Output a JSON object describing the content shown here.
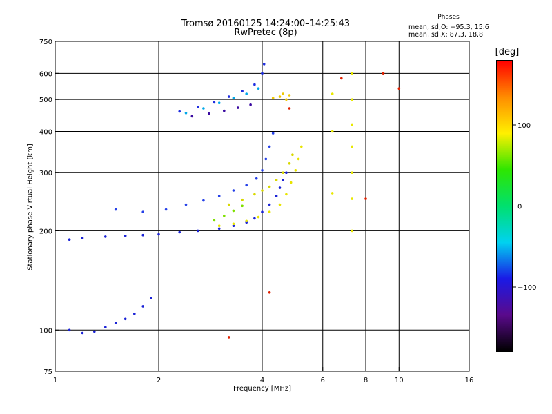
{
  "header": {
    "title_line1": "Tromsø 20160125 14:24:00–14:25:43",
    "title_line2": "RwPretec (8p)",
    "stats_title": "Phases",
    "stats_lines": [
      "mean, sd,O: −95.3, 15.6",
      "mean, sd,X:  87.3, 18.8"
    ]
  },
  "chart_data": {
    "type": "scatter",
    "xlabel": "Frequency [MHz]",
    "ylabel": "Stationary phase Virtual Height [km]",
    "x_scale": "log",
    "y_scale": "log",
    "xlim": [
      1,
      16
    ],
    "ylim": [
      75,
      750
    ],
    "x_ticks": [
      1,
      2,
      4,
      6,
      8,
      10,
      16
    ],
    "x_tick_labels": [
      "1",
      "2",
      "4",
      "6",
      "8",
      "10",
      "16"
    ],
    "y_ticks": [
      75,
      100,
      200,
      300,
      400,
      500,
      600,
      750
    ],
    "y_tick_labels": [
      "75",
      "100",
      "200",
      "300",
      "400",
      "500",
      "600",
      "750"
    ],
    "grid_x": [
      2,
      4,
      6,
      8,
      10
    ],
    "grid_y": [
      100,
      200,
      300,
      400,
      500,
      600
    ],
    "colorbar": {
      "label": "[deg]",
      "range": [
        -180,
        180
      ],
      "ticks": [
        100,
        0,
        -100
      ],
      "tick_labels": [
        "100",
        "0",
        "−100"
      ],
      "colors": [
        "#000000",
        "#5a0a8c",
        "#1a1ae6",
        "#00d2f0",
        "#00e06e",
        "#2ee600",
        "#fff000",
        "#ff8c00",
        "#ff0000"
      ]
    },
    "series": [
      {
        "trace": "o-mode-low-F",
        "phase": -100,
        "color": "#1a22d6",
        "points": [
          [
            1.1,
            188
          ],
          [
            1.2,
            190
          ],
          [
            1.4,
            192
          ],
          [
            1.6,
            193
          ],
          [
            1.8,
            194
          ],
          [
            2.0,
            195
          ],
          [
            2.3,
            198
          ],
          [
            2.6,
            200
          ],
          [
            3.0,
            203
          ],
          [
            3.3,
            207
          ],
          [
            3.6,
            212
          ],
          [
            3.8,
            218
          ],
          [
            4.0,
            228
          ],
          [
            4.2,
            240
          ],
          [
            4.4,
            255
          ],
          [
            4.5,
            270
          ],
          [
            4.6,
            285
          ],
          [
            4.7,
            300
          ]
        ]
      },
      {
        "trace": "x-mode-low-F",
        "phase": 100,
        "color": "#e8e400",
        "points": [
          [
            3.0,
            207
          ],
          [
            3.3,
            210
          ],
          [
            3.6,
            214
          ],
          [
            3.9,
            220
          ],
          [
            4.2,
            228
          ],
          [
            4.5,
            240
          ],
          [
            4.7,
            258
          ],
          [
            4.85,
            280
          ],
          [
            5.0,
            305
          ],
          [
            5.1,
            330
          ],
          [
            5.2,
            360
          ]
        ]
      },
      {
        "trace": "o-mode-second-trace",
        "phase": -100,
        "color": "#2540e8",
        "points": [
          [
            1.5,
            232
          ],
          [
            1.8,
            228
          ],
          [
            2.1,
            232
          ],
          [
            2.4,
            240
          ],
          [
            2.7,
            247
          ],
          [
            3.0,
            255
          ],
          [
            3.3,
            265
          ],
          [
            3.6,
            275
          ],
          [
            3.85,
            288
          ],
          [
            4.0,
            305
          ],
          [
            4.1,
            330
          ],
          [
            4.2,
            360
          ],
          [
            4.3,
            395
          ]
        ]
      },
      {
        "trace": "x-mode-second-trace",
        "phase": 90,
        "color": "#d8d800",
        "points": [
          [
            3.2,
            240
          ],
          [
            3.5,
            248
          ],
          [
            3.8,
            258
          ],
          [
            4.0,
            265
          ],
          [
            4.2,
            272
          ],
          [
            4.4,
            285
          ],
          [
            4.6,
            300
          ],
          [
            4.8,
            320
          ],
          [
            4.9,
            340
          ]
        ]
      },
      {
        "trace": "green-mixed",
        "phase": 40,
        "color": "#7fe000",
        "points": [
          [
            2.9,
            215
          ],
          [
            3.1,
            222
          ],
          [
            3.3,
            230
          ],
          [
            3.5,
            238
          ]
        ]
      },
      {
        "trace": "upper-purple",
        "phase": -140,
        "color": "#3a0aa0",
        "points": [
          [
            2.5,
            445
          ],
          [
            2.8,
            453
          ],
          [
            3.1,
            462
          ],
          [
            3.4,
            472
          ],
          [
            3.7,
            482
          ]
        ]
      },
      {
        "trace": "upper-blue",
        "phase": -100,
        "color": "#1f2ee0",
        "points": [
          [
            2.3,
            460
          ],
          [
            2.6,
            475
          ],
          [
            2.9,
            490
          ],
          [
            3.2,
            510
          ],
          [
            3.5,
            530
          ],
          [
            3.8,
            555
          ],
          [
            4.0,
            600
          ],
          [
            4.05,
            640
          ]
        ]
      },
      {
        "trace": "upper-cyan",
        "phase": -80,
        "color": "#00a8e8",
        "points": [
          [
            2.4,
            455
          ],
          [
            2.7,
            470
          ],
          [
            3.0,
            488
          ],
          [
            3.3,
            505
          ],
          [
            3.6,
            520
          ],
          [
            3.9,
            540
          ]
        ]
      },
      {
        "trace": "upper-x-mode",
        "phase": 110,
        "color": "#f0c800",
        "points": [
          [
            4.3,
            505
          ],
          [
            4.5,
            510
          ],
          [
            4.6,
            520
          ],
          [
            4.7,
            500
          ],
          [
            4.8,
            515
          ]
        ]
      },
      {
        "trace": "sporadic-E",
        "phase": -100,
        "color": "#1a22d6",
        "points": [
          [
            1.1,
            100
          ],
          [
            1.2,
            98
          ],
          [
            1.3,
            99
          ],
          [
            1.4,
            102
          ],
          [
            1.5,
            105
          ],
          [
            1.6,
            108
          ],
          [
            1.7,
            112
          ],
          [
            1.8,
            118
          ],
          [
            1.9,
            125
          ]
        ]
      },
      {
        "trace": "high-frequency-column",
        "phase": 110,
        "color": "#e8e800",
        "points": [
          [
            7.3,
            600
          ],
          [
            7.3,
            500
          ],
          [
            7.3,
            420
          ],
          [
            7.3,
            360
          ],
          [
            7.3,
            300
          ],
          [
            7.3,
            250
          ],
          [
            7.3,
            200
          ],
          [
            6.4,
            520
          ],
          [
            6.4,
            400
          ],
          [
            6.4,
            260
          ]
        ]
      },
      {
        "trace": "scattered-red",
        "phase": 170,
        "color": "#e02000",
        "points": [
          [
            3.2,
            95
          ],
          [
            4.2,
            130
          ],
          [
            4.8,
            470
          ],
          [
            6.8,
            580
          ],
          [
            9.0,
            600
          ],
          [
            10.0,
            540
          ],
          [
            8.0,
            250
          ]
        ]
      }
    ]
  }
}
